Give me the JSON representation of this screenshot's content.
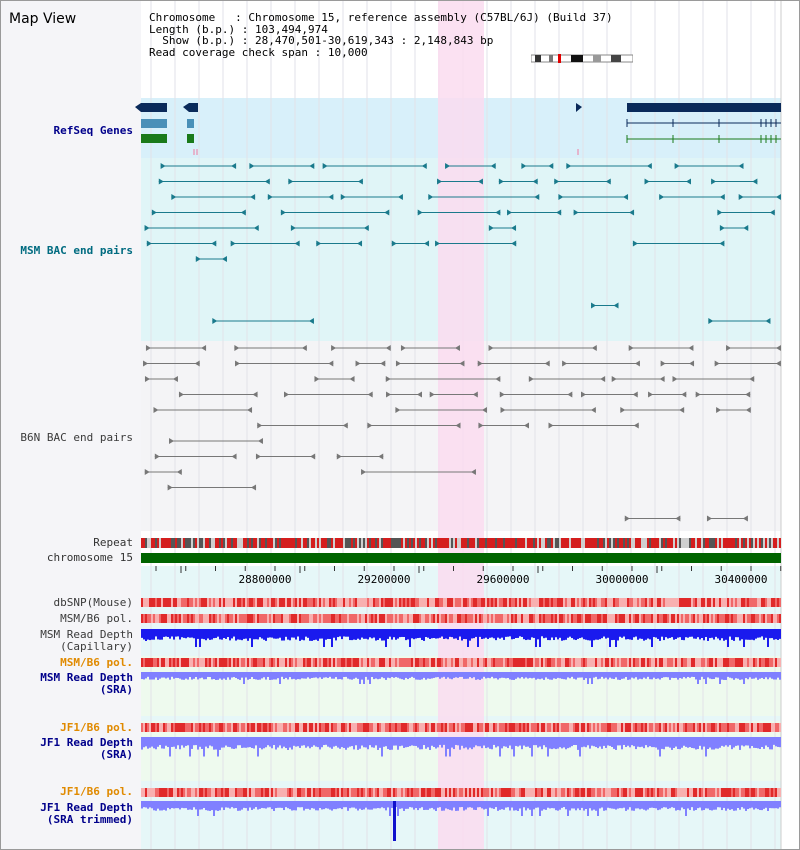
{
  "page": {
    "title": "Map View"
  },
  "info": {
    "chromosome_label": "Chromosome",
    "chromosome_value": "Chromosome 15, reference assembly (C57BL/6J) (Build 37)",
    "length_label": "Length (b.p.)",
    "length_value": "103,494,974",
    "show_label": "Show (b.p.)",
    "show_value": "28,470,501-30,619,343 : 2,148,843 bp",
    "span_label": "Read coverage check span",
    "span_value": "10,000"
  },
  "tracks": {
    "refseq": "RefSeq Genes",
    "msm_bac": "MSM BAC end pairs",
    "b6n_bac": "B6N BAC end pairs",
    "repeat": "Repeat",
    "chromosome": "chromosome 15",
    "dbsnp": "dbSNP(Mouse)",
    "msm_b6_pol_1": "MSM/B6 pol.",
    "msm_read_depth_cap_1": "MSM Read Depth",
    "msm_read_depth_cap_2": "(Capillary)",
    "msm_b6_pol_2": "MSM/B6 pol.",
    "msm_read_depth_sra_1": "MSM Read Depth",
    "msm_read_depth_sra_2": "(SRA)",
    "jf1_b6_pol_1": "JF1/B6 pol.",
    "jf1_read_depth_sra_1": "JF1 Read Depth",
    "jf1_read_depth_sra_2": "(SRA)",
    "jf1_b6_pol_2": "JF1/B6 pol.",
    "jf1_read_depth_trim_1": "JF1 Read Depth",
    "jf1_read_depth_trim_2": "(SRA trimmed)"
  },
  "axis": {
    "ticks": [
      "28800000",
      "29200000",
      "29600000",
      "30000000",
      "30400000"
    ]
  },
  "colors": {
    "refseq_bg": "#d8f0fa",
    "msm_bg": "#e0f5f7",
    "highlight": "#fadcf0",
    "chromosome_bar": "#006400",
    "repeat_red": "#d41e1e",
    "read_depth_dark": "#1a1aee",
    "read_depth_light": "#8080ff",
    "pol_red": "#ee4444",
    "bac_teal": "#1a7a8c",
    "bac_gray": "#777777"
  }
}
